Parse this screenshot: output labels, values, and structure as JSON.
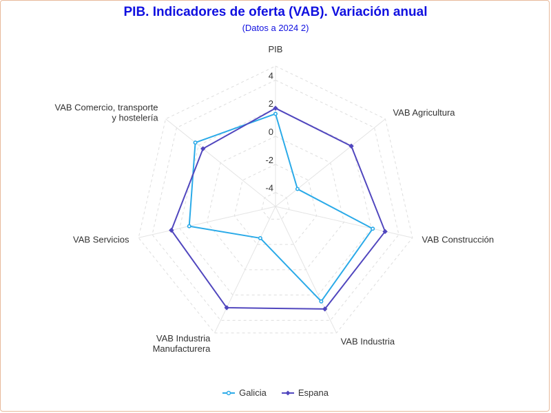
{
  "chart_data": {
    "type": "radar",
    "title": "PIB. Indicadores de oferta (VAB). Variación anual",
    "subtitle": "(Datos a 2024 2)",
    "categories": [
      "PIB",
      "VAB Agricultura",
      "VAB Construcción",
      "VAB Industria",
      "VAB Industria Manufacturera",
      "VAB Servicios",
      "VAB Comercio, transporte y hostelería"
    ],
    "radial_ticks": [
      -4,
      -2,
      0,
      2,
      4
    ],
    "rlim": [
      -5,
      5
    ],
    "grid": true,
    "legend_position": "bottom",
    "series": [
      {
        "name": "Galicia",
        "color": "#2aaae8",
        "marker": "circle",
        "values": [
          1.6,
          -3.0,
          2.1,
          2.5,
          -2.5,
          1.3,
          2.3
        ]
      },
      {
        "name": "Espana",
        "color": "#5046be",
        "marker": "diamond",
        "values": [
          2.0,
          1.9,
          3.0,
          3.1,
          3.0,
          2.6,
          1.6
        ]
      }
    ]
  }
}
